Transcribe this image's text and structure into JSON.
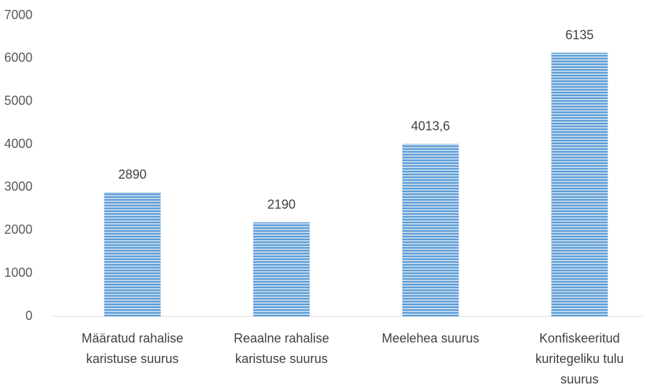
{
  "chart_data": {
    "type": "bar",
    "categories": [
      [
        "Määratud rahalise",
        "karistuse suurus"
      ],
      [
        "Reaalne rahalise",
        "karistuse suurus"
      ],
      [
        "Meelehea suurus"
      ],
      [
        "Konfiskeeritud",
        "kuritegeliku tulu",
        "suurus"
      ]
    ],
    "values": [
      2890,
      2190,
      4013.6,
      6135
    ],
    "value_labels": [
      "2890",
      "2190",
      "4013,6",
      "6135"
    ],
    "color": "#5b9bd5",
    "ylim": [
      0,
      7000
    ],
    "yticks": [
      0,
      1000,
      2000,
      3000,
      4000,
      5000,
      6000,
      7000
    ],
    "grid": false
  }
}
